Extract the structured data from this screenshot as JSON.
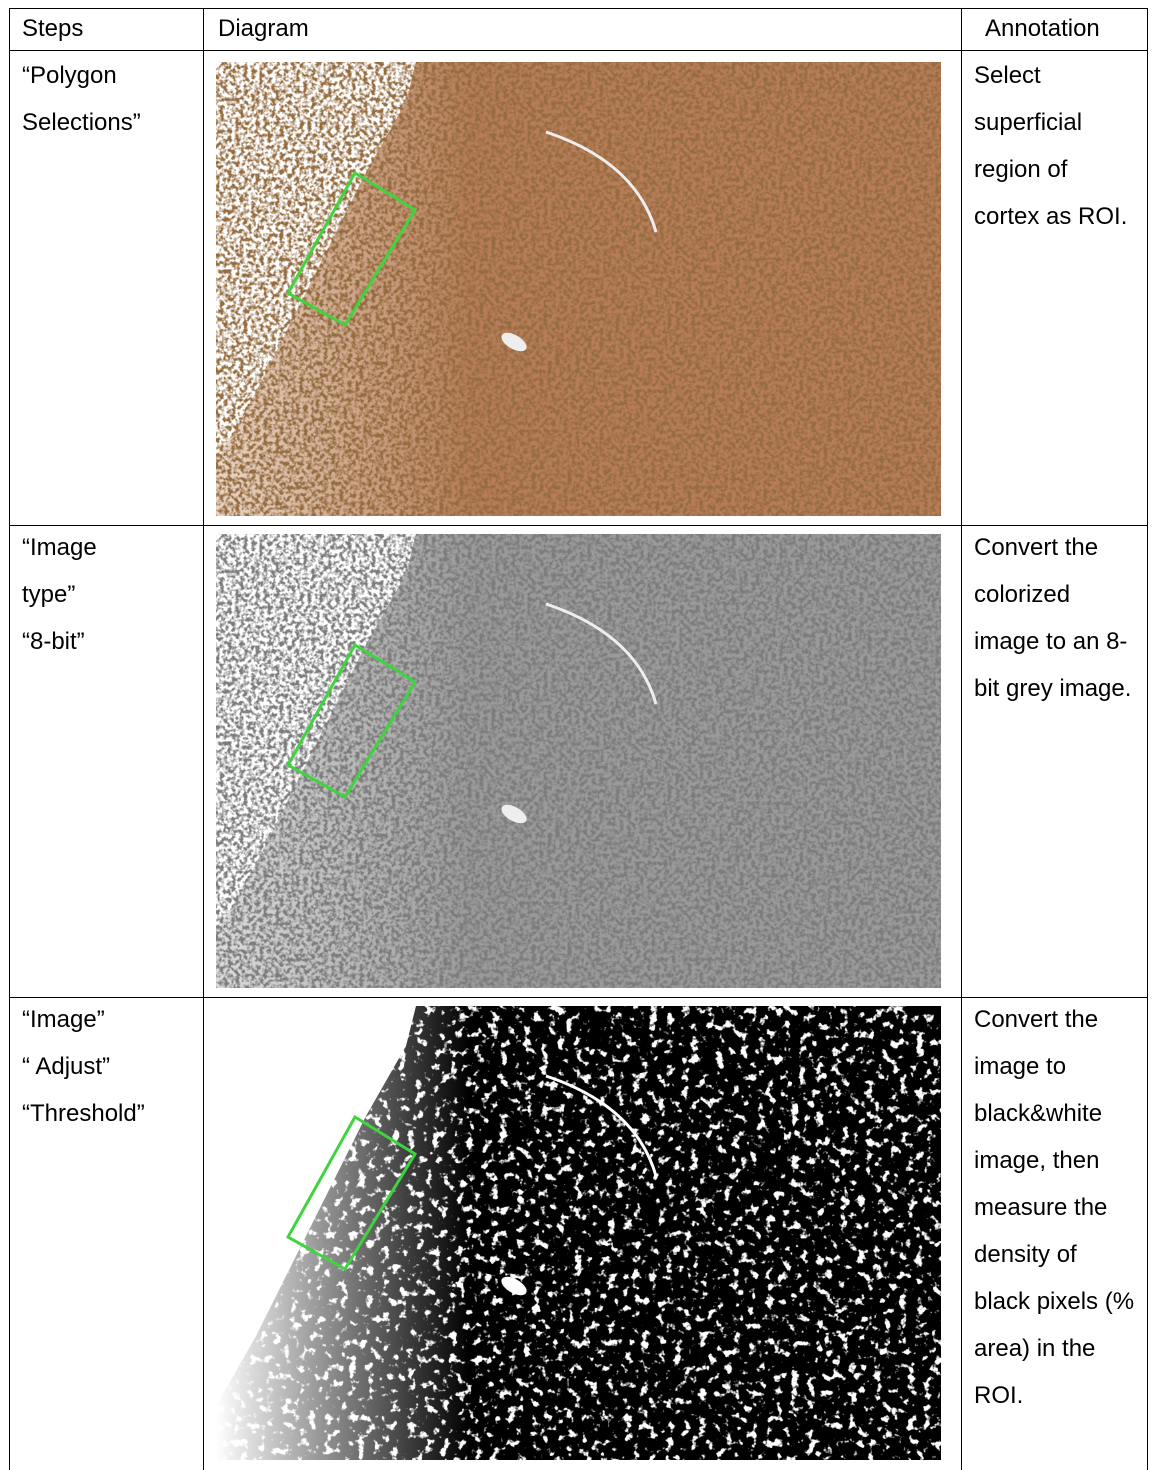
{
  "header": {
    "steps": "Steps",
    "diagram": "Diagram",
    "annotation": "Annotation"
  },
  "rows": [
    {
      "steps": [
        "“Polygon",
        "Selections”"
      ],
      "annotation": "Select superficial region of cortex as ROI."
    },
    {
      "steps": [
        "“Image",
        "type”",
        "“8-bit”"
      ],
      "annotation": "Convert the colorized image to an 8-bit grey image."
    },
    {
      "steps": [
        "“Image”",
        "“ Adjust”",
        "“Threshold”"
      ],
      "annotation": "Convert the image to black&white image, then measure the density of black pixels (% area) in the ROI."
    }
  ]
}
